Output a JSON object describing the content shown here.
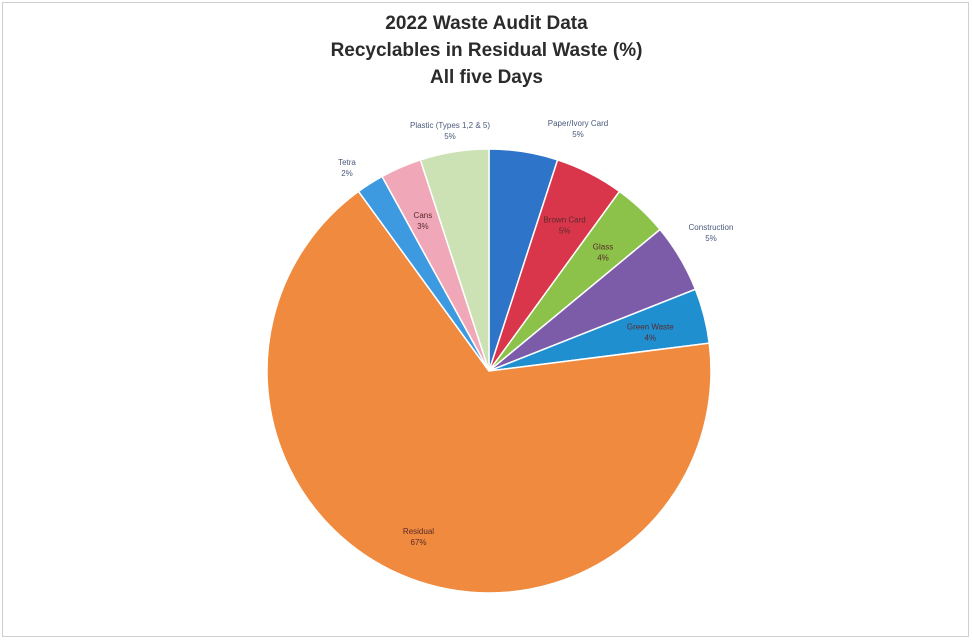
{
  "chart_data": {
    "type": "pie",
    "title": [
      "2022 Waste Audit Data",
      "Recyclables in Residual Waste (%)",
      "All five Days"
    ],
    "start_angle_deg": 0,
    "direction": "clockwise",
    "slices": [
      {
        "label": "Paper/Ivory Card",
        "value": 5,
        "value_label": "5%",
        "color": "#2e74c8",
        "label_pos": "outside"
      },
      {
        "label": "Brown Card",
        "value": 5,
        "value_label": "5%",
        "color": "#d9364c",
        "label_pos": "inside"
      },
      {
        "label": "Glass",
        "value": 4,
        "value_label": "4%",
        "color": "#8cc24a",
        "label_pos": "inside"
      },
      {
        "label": "Construction",
        "value": 5,
        "value_label": "5%",
        "color": "#7c5ba8",
        "label_pos": "outside"
      },
      {
        "label": "Green Waste",
        "value": 4,
        "value_label": "4%",
        "color": "#1f8fd0",
        "label_pos": "inside"
      },
      {
        "label": "Residual",
        "value": 67,
        "value_label": "67%",
        "color": "#ef8a3e",
        "label_pos": "inside"
      },
      {
        "label": "Tetra",
        "value": 2,
        "value_label": "2%",
        "color": "#3d9ae0",
        "label_pos": "outside"
      },
      {
        "label": "Cans",
        "value": 3,
        "value_label": "3%",
        "color": "#f0a8b8",
        "label_pos": "inside"
      },
      {
        "label": "Plastic (Types 1,2 & 5)",
        "value": 5,
        "value_label": "5%",
        "color": "#cce2b4",
        "label_pos": "outside"
      }
    ]
  }
}
